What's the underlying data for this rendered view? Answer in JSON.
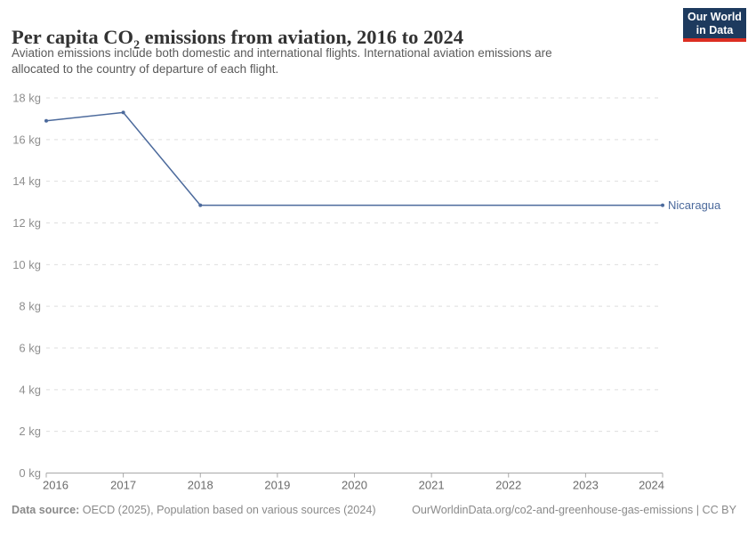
{
  "header": {
    "title_prefix": "Per capita CO",
    "title_sub": "2",
    "title_suffix": " emissions from aviation, 2016 to 2024",
    "subtitle_line1": "Aviation emissions include both domestic and international flights. International aviation emissions are",
    "subtitle_line2": "allocated to the country of departure of each flight."
  },
  "logo": {
    "line1": "Our World",
    "line2": "in Data",
    "bg_color": "#1d3a5e",
    "accent_color": "#dc2e22"
  },
  "footer": {
    "source_label": "Data source:",
    "source_text": " OECD (2025), Population based on various sources (2024)",
    "link_text": "OurWorldinData.org/co2-and-greenhouse-gas-emissions | CC BY"
  },
  "chart_data": {
    "type": "line",
    "title": "Per capita CO₂ emissions from aviation, 2016 to 2024",
    "unit": "kg",
    "x": [
      2016,
      2017,
      2018,
      2019,
      2020,
      2021,
      2022,
      2023,
      2024
    ],
    "series": [
      {
        "name": "Nicaragua",
        "color": "#4c6a9c",
        "values": [
          16.9,
          17.3,
          12.85,
          12.85,
          12.85,
          12.85,
          12.85,
          12.85,
          12.85
        ]
      }
    ],
    "ylim": [
      0,
      18
    ],
    "yticks": [
      0,
      2,
      4,
      6,
      8,
      10,
      12,
      14,
      16,
      18
    ],
    "ytick_format": "{v} kg",
    "grid": "dashed-horizontal",
    "legend": "end-of-line-label",
    "marker_indices": [
      0,
      1,
      2,
      8
    ]
  }
}
